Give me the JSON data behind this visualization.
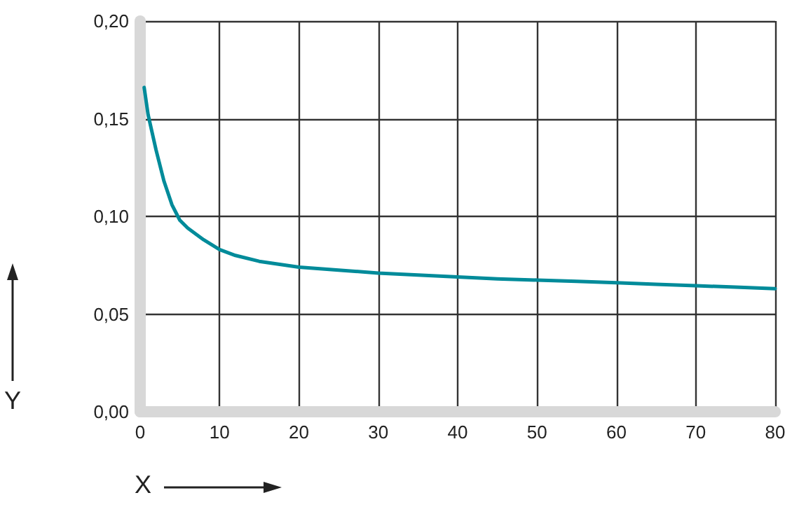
{
  "chart_data": {
    "type": "line",
    "xlabel": "X",
    "ylabel": "Y",
    "x": [
      0.5,
      1,
      2,
      3,
      4,
      5,
      6,
      8,
      10,
      12,
      15,
      20,
      25,
      30,
      35,
      40,
      45,
      50,
      55,
      60,
      65,
      70,
      75,
      80
    ],
    "series": [
      {
        "color": "#008b9a",
        "values": [
          0.166,
          0.152,
          0.134,
          0.118,
          0.106,
          0.098,
          0.094,
          0.088,
          0.083,
          0.08,
          0.077,
          0.074,
          0.0725,
          0.071,
          0.07,
          0.069,
          0.068,
          0.0674,
          0.0668,
          0.066,
          0.0652,
          0.0645,
          0.0638,
          0.063
        ]
      }
    ],
    "xlim": [
      0,
      80
    ],
    "xticks": [
      0,
      10,
      20,
      30,
      40,
      50,
      60,
      70,
      80
    ],
    "ylim": [
      0,
      0.2
    ],
    "yticks": [
      {
        "value": 0,
        "label": "0,00"
      },
      {
        "value": 0.05,
        "label": "0,05"
      },
      {
        "value": 0.1,
        "label": "0,10"
      },
      {
        "value": 0.15,
        "label": "0,15"
      },
      {
        "value": 0.2,
        "label": "0,20"
      }
    ],
    "grid": true,
    "marker": "none",
    "line_style": "solid"
  }
}
